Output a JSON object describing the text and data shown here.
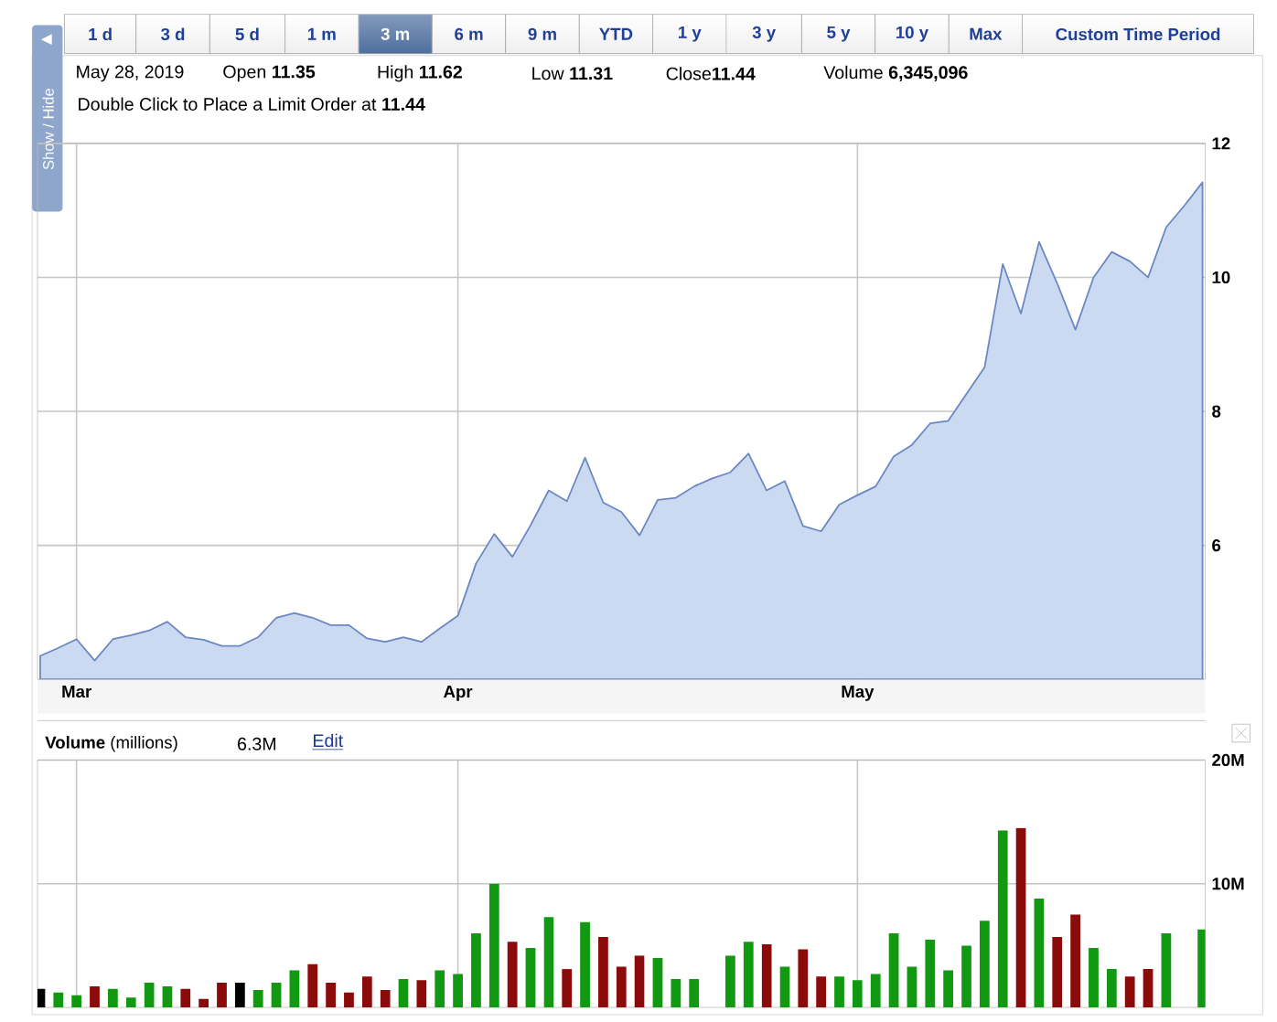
{
  "chart_data": [
    {
      "type": "other",
      "annotations": [
        "1 d",
        "3 d",
        "5 d",
        "1 m",
        "3 m",
        "6 m",
        "9 m",
        "YTD",
        "1 y",
        "3 y",
        "5 y",
        "10 y",
        "Max",
        "Custom Time Period",
        "Show / Hide",
        "May 28, 2019",
        "Open **11.35**",
        "High **11.62**",
        "Low **11.31**",
        "Close**11.44**",
        "Volume **6,345,096**",
        "Double Click to Place a Limit Order at **11.44**"
      ]
    },
    {
      "type": "area",
      "color": "#cbd9f1",
      "ylim": [
        4,
        12
      ],
      "yticks": [
        6,
        8,
        10,
        12
      ],
      "grid": true,
      "categories": [
        null,
        null,
        "Mar",
        null,
        null,
        null,
        null,
        null,
        null,
        null,
        null,
        null,
        null,
        null,
        null,
        null,
        null,
        null,
        null,
        null,
        null,
        null,
        null,
        "Apr",
        null,
        null,
        null,
        null,
        null,
        null,
        null,
        null,
        null,
        null,
        null,
        null,
        null,
        null,
        null,
        null,
        null,
        null,
        null,
        null,
        null,
        "May",
        null,
        null,
        null,
        null,
        null,
        null,
        null,
        null,
        null,
        null,
        null,
        null,
        null,
        null,
        null,
        null,
        null,
        null,
        null
      ],
      "values": [
        4.35,
        4.47,
        4.6,
        4.28,
        4.6,
        4.66,
        4.73,
        4.86,
        4.63,
        4.59,
        4.5,
        4.5,
        4.63,
        4.92,
        4.99,
        4.92,
        4.81,
        4.81,
        4.61,
        4.56,
        4.63,
        4.56,
        4.76,
        4.95,
        5.73,
        6.17,
        5.83,
        6.3,
        6.82,
        6.66,
        7.31,
        6.64,
        6.5,
        6.15,
        6.68,
        6.71,
        6.88,
        7.0,
        7.09,
        7.37,
        6.82,
        6.96,
        6.29,
        6.21,
        6.61,
        6.75,
        6.88,
        7.33,
        7.5,
        7.82,
        7.86,
        8.26,
        8.66,
        10.2,
        9.46,
        10.53,
        9.91,
        9.22,
        10.0,
        10.38,
        10.24,
        10.0,
        10.75,
        11.07,
        11.42
      ]
    },
    {
      "type": "bar",
      "title": "**Volume** (millions)",
      "annotations": [
        "6.3M",
        "Edit"
      ],
      "ylim": [
        0,
        20
      ],
      "yticks": [
        {
          "value": 10,
          "label": "10M"
        },
        {
          "value": 20,
          "label": "20M"
        }
      ],
      "grid": true,
      "tick_labels": "y",
      "categories": [
        null,
        null,
        null,
        null,
        null,
        null,
        null,
        null,
        null,
        null,
        null,
        null,
        null,
        null,
        null,
        null,
        null,
        null,
        null,
        null,
        null,
        null,
        null,
        null,
        null,
        null,
        null,
        null,
        null,
        null,
        null,
        null,
        null,
        null,
        null,
        null,
        null,
        null,
        null,
        null,
        null,
        null,
        null,
        null,
        null,
        null,
        null,
        null,
        null,
        null,
        null,
        null,
        null,
        null,
        null,
        null,
        null,
        null,
        null,
        null,
        null,
        null,
        null,
        null,
        null
      ],
      "values": [
        1.5,
        1.2,
        1.0,
        1.7,
        1.5,
        0.8,
        2.0,
        1.7,
        1.5,
        0.7,
        2.0,
        2.0,
        1.4,
        2.0,
        3.0,
        3.5,
        2.0,
        1.2,
        2.5,
        1.4,
        2.3,
        2.2,
        3.0,
        2.7,
        6.0,
        10.0,
        5.3,
        4.8,
        7.3,
        3.1,
        6.9,
        5.7,
        3.3,
        4.2,
        4.0,
        2.3,
        2.3,
        null,
        4.2,
        5.3,
        5.1,
        3.3,
        4.7,
        2.5,
        2.5,
        2.2,
        2.7,
        6.0,
        3.3,
        5.5,
        3.0,
        5.0,
        7.0,
        14.3,
        14.5,
        8.8,
        5.7,
        7.5,
        4.8,
        3.1,
        2.5,
        3.1,
        6.0,
        null,
        6.3
      ],
      "colors": [
        "#000000",
        "#119911",
        "#119911",
        "#8b0a0a",
        "#119911",
        "#119911",
        "#119911",
        "#119911",
        "#8b0a0a",
        "#8b0a0a",
        "#8b0a0a",
        "#000000",
        "#119911",
        "#119911",
        "#119911",
        "#8b0a0a",
        "#8b0a0a",
        "#8b0a0a",
        "#8b0a0a",
        "#8b0a0a",
        "#119911",
        "#8b0a0a",
        "#119911",
        "#119911",
        "#119911",
        "#119911",
        "#8b0a0a",
        "#119911",
        "#119911",
        "#8b0a0a",
        "#119911",
        "#8b0a0a",
        "#8b0a0a",
        "#8b0a0a",
        "#119911",
        "#119911",
        "#119911",
        "#119911",
        "#119911",
        "#119911",
        "#8b0a0a",
        "#119911",
        "#8b0a0a",
        "#8b0a0a",
        "#119911",
        "#119911",
        "#119911",
        "#119911",
        "#119911",
        "#119911",
        "#119911",
        "#119911",
        "#119911",
        "#119911",
        "#8b0a0a",
        "#119911",
        "#8b0a0a",
        "#8b0a0a",
        "#119911",
        "#119911",
        "#8b0a0a",
        "#8b0a0a",
        "#119911",
        "#119911",
        "#119911"
      ]
    }
  ]
}
